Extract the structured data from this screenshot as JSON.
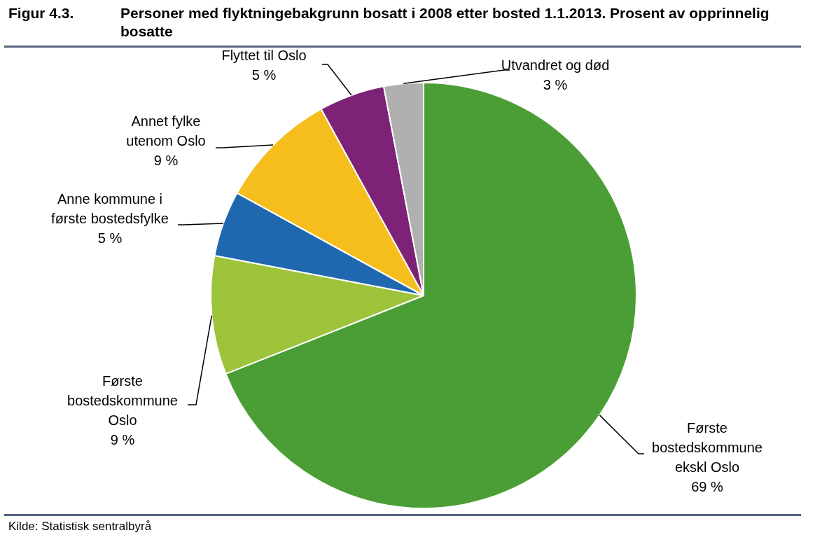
{
  "chart_data": {
    "type": "pie",
    "figure_label": "Figur 4.3.",
    "title": "Personer med flyktningebakgrunn bosatt i 2008 etter bosted 1.1.2013. Prosent av opprinnelig bosatte",
    "source": "Kilde: Statistisk sentralbyrå",
    "categories": [
      "Første\nbostedskommune\nekskl Oslo",
      "Første\nbostedskommune\nOslo",
      "Anne kommune i\nførste bostedsfylke",
      "Annet fylke\nutenom Oslo",
      "Flyttet til Oslo",
      "Utvandret og død"
    ],
    "values": [
      69,
      9,
      5,
      9,
      5,
      3
    ],
    "value_labels": [
      "69 %",
      "9 %",
      "5 %",
      "9 %",
      "5 %",
      "3 %"
    ],
    "colors": [
      "#4a9e35",
      "#9dc33b",
      "#1f68b0",
      "#f5be1c",
      "#7d2277",
      "#b0b0b0"
    ],
    "data_labels": true
  }
}
